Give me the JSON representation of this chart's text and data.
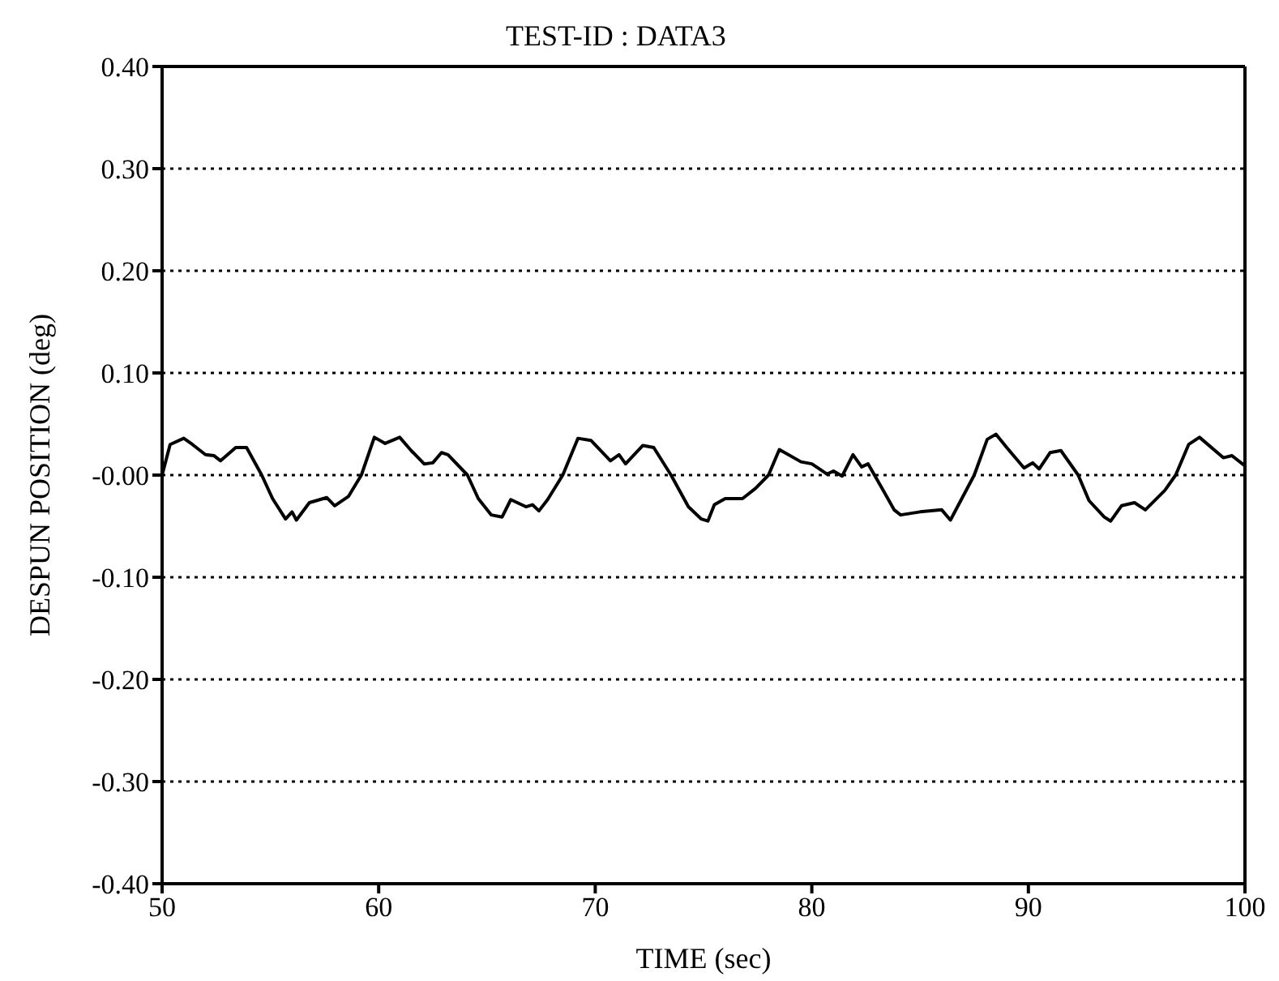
{
  "chart_data": {
    "type": "line",
    "title": "TEST-ID : DATA3",
    "xlabel": "TIME (sec)",
    "ylabel": "DESPUN POSITION (deg)",
    "xlim": [
      50,
      100
    ],
    "xticks": [
      50,
      60,
      70,
      80,
      90,
      100
    ],
    "ylim": [
      -0.4,
      0.4
    ],
    "yticks": [
      {
        "value": -0.4,
        "label": "-0.40"
      },
      {
        "value": -0.3,
        "label": "-0.30"
      },
      {
        "value": -0.2,
        "label": "-0.20"
      },
      {
        "value": -0.1,
        "label": "-0.10"
      },
      {
        "value": 0,
        "label": "-0.00"
      },
      {
        "value": 0.1,
        "label": "0.10"
      },
      {
        "value": 0.2,
        "label": "0.20"
      },
      {
        "value": 0.3,
        "label": "0.30"
      },
      {
        "value": 0.4,
        "label": "0.40"
      }
    ],
    "grid": "y",
    "legend": false,
    "marker": "none",
    "series": [
      {
        "color": "#000000",
        "x": [
          50,
          50.37,
          51.0,
          51.4,
          52.0,
          52.4,
          52.7,
          53.4,
          53.9,
          54.6,
          55.1,
          55.7,
          56.0,
          56.2,
          56.8,
          57.6,
          57.97,
          58.6,
          59.2,
          59.8,
          60.3,
          60.97,
          61.5,
          62.1,
          62.5,
          62.9,
          63.2,
          64.1,
          64.6,
          65.2,
          65.7,
          66.1,
          66.8,
          67.1,
          67.4,
          67.8,
          68.5,
          69.2,
          69.8,
          70.7,
          71.1,
          71.4,
          72.2,
          72.7,
          73.5,
          74.3,
          74.9,
          75.2,
          75.5,
          76.0,
          76.8,
          77.4,
          78.0,
          78.5,
          79.5,
          80.0,
          80.7,
          81.0,
          81.4,
          81.9,
          82.3,
          82.6,
          83.3,
          83.8,
          84.1,
          85.0,
          86.0,
          86.4,
          87.5,
          88.1,
          88.5,
          89.0,
          89.8,
          90.2,
          90.5,
          91.0,
          91.5,
          92.3,
          92.8,
          93.5,
          93.8,
          94.3,
          94.9,
          95.4,
          96.3,
          96.8,
          97.4,
          97.9,
          99.0,
          99.4,
          100
        ],
        "values": [
          0,
          0.03,
          0.036,
          0.03,
          0.02,
          0.019,
          0.014,
          0.027,
          0.027,
          0,
          -0.023,
          -0.043,
          -0.036,
          -0.044,
          -0.027,
          -0.022,
          -0.03,
          -0.021,
          0,
          0.037,
          0.031,
          0.037,
          0.024,
          0.011,
          0.012,
          0.022,
          0.02,
          0,
          -0.023,
          -0.039,
          -0.041,
          -0.024,
          -0.031,
          -0.029,
          -0.035,
          -0.024,
          0,
          0.036,
          0.034,
          0.014,
          0.02,
          0.011,
          0.029,
          0.027,
          0,
          -0.031,
          -0.043,
          -0.045,
          -0.029,
          -0.023,
          -0.023,
          -0.013,
          0,
          0.025,
          0.013,
          0.011,
          0.001,
          0.004,
          -0.001,
          0.02,
          0.008,
          0.011,
          -0.015,
          -0.034,
          -0.039,
          -0.036,
          -0.034,
          -0.044,
          0,
          0.035,
          0.04,
          0.027,
          0.007,
          0.012,
          0.006,
          0.022,
          0.024,
          0,
          -0.025,
          -0.041,
          -0.045,
          -0.03,
          -0.027,
          -0.034,
          -0.015,
          0,
          0.03,
          0.037,
          0.017,
          0.019,
          0.009
        ]
      }
    ]
  }
}
